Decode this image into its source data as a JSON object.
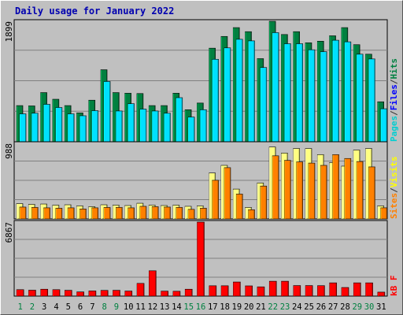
{
  "chart_data": {
    "type": "bar",
    "title": "Daily usage for January 2022",
    "categories": [
      "1",
      "2",
      "3",
      "4",
      "5",
      "6",
      "7",
      "8",
      "9",
      "10",
      "11",
      "12",
      "13",
      "14",
      "15",
      "16",
      "17",
      "18",
      "19",
      "20",
      "21",
      "22",
      "23",
      "24",
      "25",
      "26",
      "27",
      "28",
      "29",
      "30",
      "31"
    ],
    "weekend_days": [
      "1",
      "2",
      "8",
      "9",
      "15",
      "16",
      "22",
      "23",
      "29",
      "30"
    ],
    "panels": [
      {
        "id": "hits-files-pages",
        "ymax": 1899,
        "ymax_label": "1899",
        "right_label_parts": [
          "Pages",
          "/",
          "Files",
          "/",
          "Hits"
        ],
        "right_label_colors": [
          "#00ced1",
          "#333333",
          "#0000ff",
          "#333333",
          "#008040"
        ],
        "series": [
          {
            "name": "Hits",
            "color": "#008040",
            "values": [
              570,
              565,
              775,
              670,
              570,
              455,
              655,
              1135,
              775,
              765,
              760,
              570,
              570,
              765,
              505,
              610,
              1475,
              1660,
              1799,
              1735,
              1310,
              1899,
              1690,
              1735,
              1560,
              1585,
              1670,
              1799,
              1530,
              1380,
              630
            ]
          },
          {
            "name": "Files",
            "color": "#00e0ff",
            "values": [
              440,
              450,
              590,
              540,
              440,
              410,
              490,
              950,
              485,
              600,
              515,
              485,
              450,
              695,
              390,
              505,
              1300,
              1480,
              1615,
              1590,
              1170,
              1720,
              1545,
              1545,
              1450,
              1420,
              1600,
              1575,
              1380,
              1305,
              520
            ]
          }
        ]
      },
      {
        "id": "visits-sites",
        "ymax": 988,
        "ymax_label": "988",
        "right_label_parts": [
          "Sites",
          "/",
          "Visits"
        ],
        "right_label_colors": [
          "#ff8000",
          "#333333",
          "#ffff00"
        ],
        "series": [
          {
            "name": "Visits",
            "color": "#ffff80",
            "values": [
              200,
              190,
              195,
              180,
              185,
              170,
              160,
              185,
              180,
              175,
              205,
              180,
              175,
              180,
              165,
              170,
              600,
              700,
              390,
              150,
              470,
              940,
              860,
              920,
              920,
              840,
              735,
              690,
              900,
              920,
              170
            ]
          },
          {
            "name": "Sites",
            "color": "#ff8000",
            "values": [
              155,
              150,
              145,
              140,
              145,
              130,
              145,
              150,
              150,
              145,
              165,
              160,
              155,
              150,
              125,
              140,
              505,
              670,
              325,
              120,
              430,
              825,
              765,
              745,
              730,
              700,
              840,
              790,
              750,
              680,
              145
            ]
          }
        ]
      },
      {
        "id": "kbytes",
        "ymax": 6867,
        "ymax_label": "6867",
        "right_label_parts": [
          "kB",
          " ",
          "F"
        ],
        "right_label_colors": [
          "#ff0000",
          "#ff0000",
          "#ff0000"
        ],
        "series": [
          {
            "name": "kB F",
            "color": "#ff0000",
            "values": [
              600,
              550,
              640,
              600,
              540,
              390,
              480,
              530,
              540,
              470,
              1180,
              2350,
              460,
              450,
              640,
              6867,
              960,
              960,
              1310,
              950,
              860,
              1380,
              1380,
              980,
              980,
              970,
              1230,
              800,
              1230,
              1230,
              370
            ]
          }
        ]
      }
    ]
  }
}
